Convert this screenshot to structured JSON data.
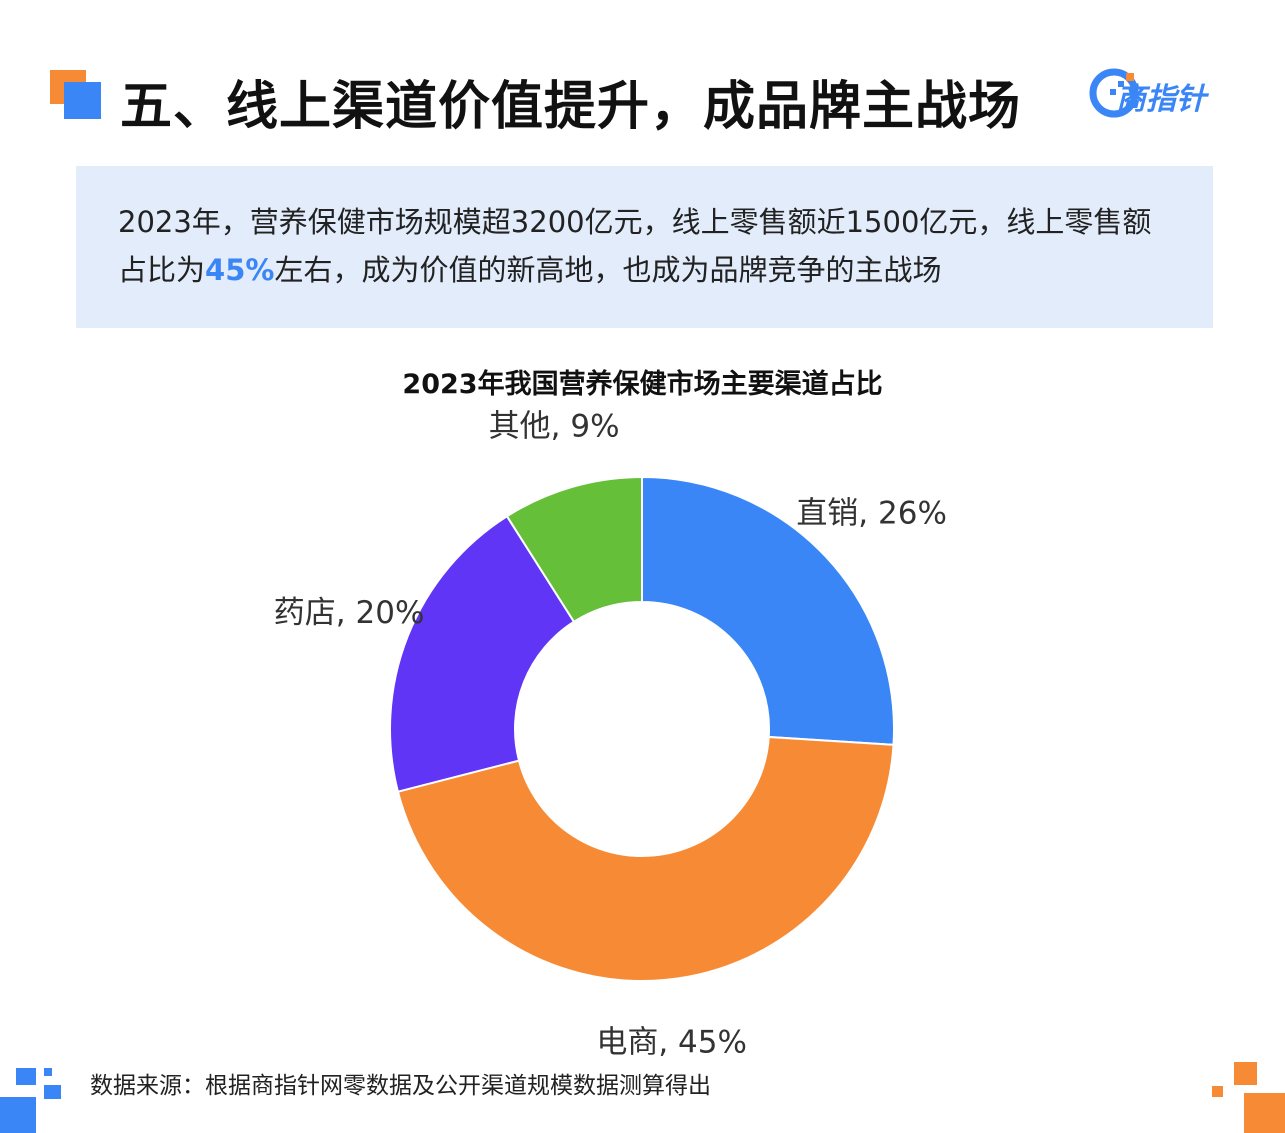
{
  "header": {
    "title": "五、线上渠道价值提升，成品牌主战场",
    "logo_text": "商指针"
  },
  "summary": {
    "line1": "2023年，营养保健市场规模超3200亿元，线上零售额近1500亿元，线上零售额",
    "line2_before": "占比为",
    "line2_highlight": "45%",
    "line2_after": "左右，成为价值的新高地，也成为品牌竞争的主战场"
  },
  "chart_data": {
    "type": "pie",
    "donut": true,
    "title": "2023年我国营养保健市场主要渠道占比",
    "start_angle_deg": 0,
    "direction": "clockwise",
    "slices": [
      {
        "label": "直销",
        "value": 26,
        "display": "直销, 26%",
        "color": "#3a86f7"
      },
      {
        "label": "电商",
        "value": 45,
        "display": "电商, 45%",
        "color": "#f78b35"
      },
      {
        "label": "药店",
        "value": 20,
        "display": "药店, 20%",
        "color": "#6035f5"
      },
      {
        "label": "其他",
        "value": 9,
        "display": "其他, 9%",
        "color": "#66bf39"
      }
    ]
  },
  "footer": {
    "source": "数据来源：根据商指针网零数据及公开渠道规模数据测算得出"
  },
  "colors": {
    "accent_blue": "#3b86f7",
    "accent_orange": "#f78b35",
    "summary_bg": "#e2ecfb"
  }
}
